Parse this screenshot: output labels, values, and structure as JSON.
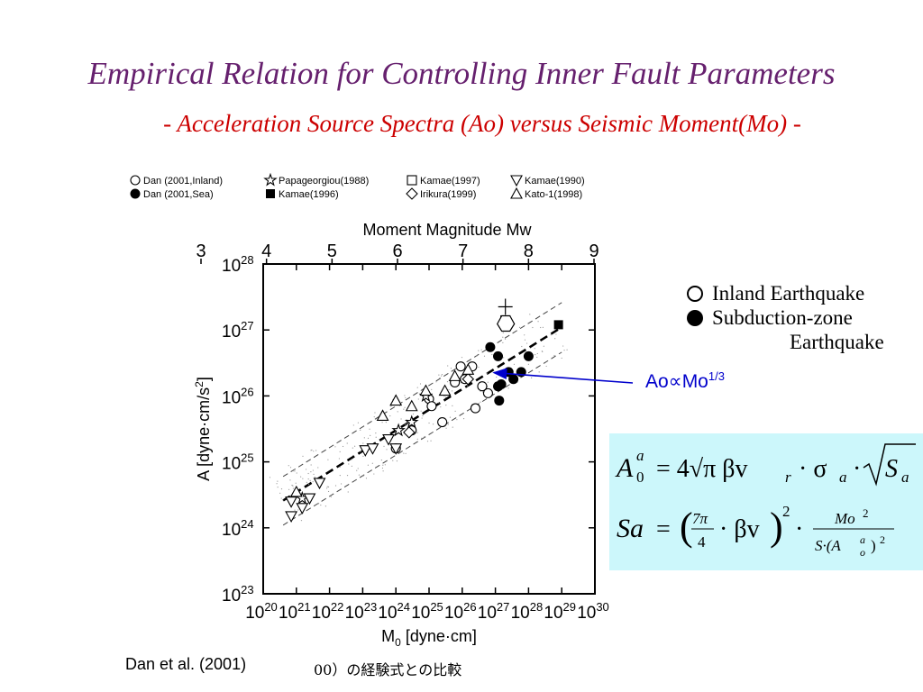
{
  "slide": {
    "title": "Empirical Relation for Controlling Inner Fault Parameters",
    "subtitle_dash_left": "-",
    "subtitle_text": "Acceleration Source Spectra (Ao) versus Seismic Moment(Mo)",
    "subtitle_dash_right": "-",
    "citation": "Dan et al. (2001)",
    "jp_caption": "00）の経験式との比較",
    "colors": {
      "title": "#66206e",
      "subtitle": "#cc0000",
      "relation": "#0000cc",
      "eqbox_bg": "#ccf7fb"
    }
  },
  "legend_right": {
    "inland": "Inland Earthquake",
    "subduction_1": "Subduction-zone",
    "subduction_2": "Earthquake"
  },
  "relation": {
    "base": "Ao∝Mo",
    "exp": "1/3"
  },
  "equations": {
    "eq1_lhs_base": "A",
    "eq1_lhs_sup": "a",
    "eq1_lhs_sub": "0",
    "eq1_rhs": "= 4√π βv",
    "eq2_lhs": "Sa",
    "eq2_num": "Mo",
    "eq2_den": "S·(A",
    "eq2_frac_top": "7π",
    "eq2_frac_bottom": "4"
  },
  "chart_data": {
    "type": "scatter",
    "legend": [
      {
        "label": "Dan (2001,Inland)",
        "marker": "circle-open"
      },
      {
        "label": "Papageorgiou(1988)",
        "marker": "star-open"
      },
      {
        "label": "Kamae(1997)",
        "marker": "square-open"
      },
      {
        "label": "Kamae(1990)",
        "marker": "triangle-down-open"
      },
      {
        "label": "Dan (2001,Sea)",
        "marker": "circle-filled"
      },
      {
        "label": "Kamae(1996)",
        "marker": "square-filled"
      },
      {
        "label": "Irikura(1999)",
        "marker": "diamond-open"
      },
      {
        "label": "Kato-1(1998)",
        "marker": "triangle-up-open"
      }
    ],
    "top_axis": {
      "label": "Moment Magnitude Mw",
      "ticks": [
        "3",
        "4",
        "5",
        "6",
        "7",
        "8",
        "9"
      ]
    },
    "xlabel": "M0 [dyne·cm]",
    "ylabel": "A [dyne·cm/s2]",
    "x_scale": "log",
    "y_scale": "log",
    "xlim": [
      1e+20,
      1e+30
    ],
    "ylim": [
      1e+23,
      1e+28
    ],
    "x_ticks": [
      "20",
      "21",
      "22",
      "23",
      "24",
      "25",
      "26",
      "27",
      "28",
      "29",
      "30"
    ],
    "y_ticks": [
      "28",
      "27",
      "26",
      "25",
      "24",
      "23"
    ],
    "series": [
      {
        "name": "Dan (2001,Inland)",
        "marker": "circle-open",
        "points": [
          [
            1e+24,
            1.6e+25
          ],
          [
            3e+24,
            3e+25
          ],
          [
            1e+25,
            9e+25
          ],
          [
            1.2e+25,
            7e+25
          ],
          [
            2.5e+25,
            4e+25
          ],
          [
            6e+25,
            1.6e+26
          ],
          [
            9e+25,
            2.8e+26
          ],
          [
            1.2e+26,
            1.8e+26
          ],
          [
            2e+26,
            2.8e+26
          ],
          [
            2.5e+26,
            6.5e+25
          ],
          [
            4e+26,
            1.4e+26
          ],
          [
            6e+26,
            1.1e+26
          ]
        ]
      },
      {
        "name": "Dan (2001,Sea)",
        "marker": "circle-filled",
        "points": [
          [
            7e+26,
            5.5e+26
          ],
          [
            1.2e+27,
            4e+26
          ],
          [
            1.2e+27,
            1.4e+26
          ],
          [
            1.5e+27,
            1.5e+26
          ],
          [
            1.3e+27,
            8.5e+25
          ],
          [
            2.5e+27,
            2.3e+26
          ],
          [
            3.5e+27,
            1.8e+26
          ],
          [
            6e+27,
            2.3e+26
          ],
          [
            1e+28,
            4e+26
          ]
        ]
      },
      {
        "name": "Papageorgiou(1988)",
        "marker": "star-open",
        "points": [
          [
            1.5e+21,
            2.8e+24
          ],
          [
            1.2e+24,
            3e+25
          ],
          [
            3e+24,
            4e+25
          ],
          [
            8e+24,
            1e+26
          ]
        ]
      },
      {
        "name": "Kamae(1996)",
        "marker": "square-filled",
        "points": [
          [
            8e+28,
            1.2e+27
          ]
        ]
      },
      {
        "name": "Kamae(1997)",
        "marker": "square-open",
        "points": [
          [
            2e+27,
            1.4e+27
          ]
        ]
      },
      {
        "name": "Irikura(1999)",
        "marker": "diamond-open",
        "points": [
          [
            2.5e+24,
            2.8e+25
          ],
          [
            1.5e+26,
            1.8e+26
          ]
        ]
      },
      {
        "name": "Kamae(1990)",
        "marker": "triangle-down-open",
        "points": [
          [
            7e+20,
            2.5e+24
          ],
          [
            7e+20,
            1.5e+24
          ],
          [
            1.5e+21,
            2e+24
          ],
          [
            2.5e+21,
            2.8e+24
          ],
          [
            5e+21,
            4.8e+24
          ],
          [
            1.2e+23,
            1.5e+25
          ],
          [
            2e+23,
            1.6e+25
          ],
          [
            6e+23,
            2.2e+25
          ],
          [
            1e+24,
            1.6e+25
          ]
        ]
      },
      {
        "name": "Kato-1(1998)",
        "marker": "triangle-up-open",
        "points": [
          [
            1e+21,
            3.5e+24
          ],
          [
            4e+23,
            5e+25
          ],
          [
            1e+24,
            8.5e+25
          ],
          [
            3e+24,
            7e+25
          ],
          [
            8e+24,
            1.2e+26
          ],
          [
            3e+25,
            1.2e+26
          ],
          [
            6e+25,
            2e+26
          ],
          [
            1.5e+26,
            2.5e+26
          ]
        ]
      }
    ],
    "fit_line": {
      "x": [
        4e+20,
        1e+29
      ],
      "y": [
        2.6e+24,
        1.1e+27
      ]
    },
    "band_upper": {
      "x": [
        4e+20,
        1e+29
      ],
      "y": [
        6e+24,
        2.6e+27
      ]
    },
    "band_lower": {
      "x": [
        4e+20,
        1e+29
      ],
      "y": [
        1.1e+24,
        4.6e+26
      ]
    },
    "annotation_point": {
      "x": 7e+26,
      "y": 2.4e+26
    }
  }
}
